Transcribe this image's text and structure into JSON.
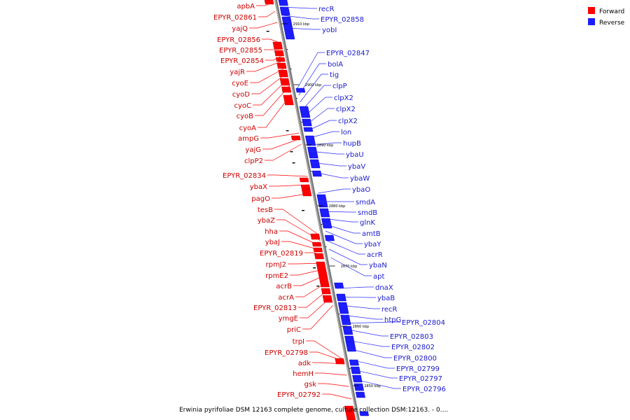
{
  "colors": {
    "forward": "#ff0000",
    "reverse": "#1c1cff",
    "forward_label": "#cc0000",
    "reverse_label": "#1a1acc",
    "backbone": "#7a7a7a"
  },
  "legend": {
    "forward": "Forward",
    "reverse": "Reverse"
  },
  "caption": "Erwinia pyrifoliae DSM 12163 complete genome, culture collection DSM:12163. - 0....",
  "kbp_ticks": [
    "2910 kbp",
    "2900 kbp",
    "2890 kbp",
    "2880 kbp",
    "2870 kbp",
    "2860 kbp",
    "2850 kbp"
  ],
  "forward_genes": [
    "apbA",
    "EPYR_02861",
    "yajQ",
    "EPYR_02856",
    "EPYR_02855",
    "EPYR_02854",
    "yajR",
    "cyoE",
    "cyoD",
    "cyoC",
    "cyoB",
    "cyoA",
    "ampG",
    "yajG",
    "clpP2",
    "EPYR_02834",
    "ybaX",
    "pagO",
    "tesB",
    "ybaZ",
    "hha",
    "ybaJ",
    "EPYR_02819",
    "rpmJ2",
    "rpmE2",
    "acrB",
    "acrA",
    "EPYR_02813",
    "ymgE",
    "priC",
    "trpI",
    "EPYR_02798",
    "adk",
    "hemH",
    "gsk",
    "EPYR_02792"
  ],
  "reverse_genes": [
    "recR",
    "EPYR_02858",
    "yobI",
    "EPYR_02847",
    "bolA",
    "tig",
    "clpP",
    "clpX2",
    "clpX2",
    "clpX2",
    "lon",
    "hupB",
    "ybaU",
    "ybaV",
    "ybaW",
    "ybaO",
    "smdA",
    "smdB",
    "glnK",
    "amtB",
    "ybaY",
    "acrR",
    "ybaN",
    "apt",
    "dnaX",
    "ybaB",
    "recR",
    "htpG",
    "EPYR_02804",
    "EPYR_02803",
    "EPYR_02802",
    "EPYR_02800",
    "EPYR_02799",
    "EPYR_02797",
    "EPYR_02796"
  ]
}
